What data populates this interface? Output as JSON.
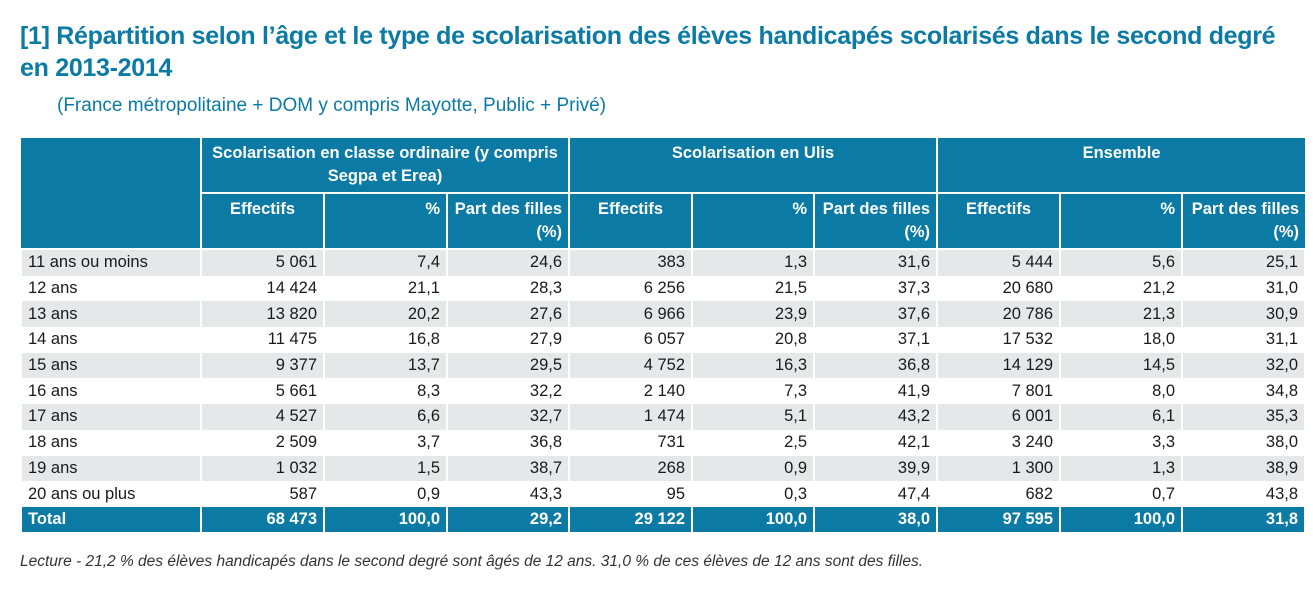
{
  "title": "[1] Répartition selon l’âge et le type de scolarisation des élèves handicapés scolarisés dans le second degré en 2013-2014",
  "subtitle": "(France métropolitaine + DOM y compris Mayotte, Public + Privé)",
  "table": {
    "groups": {
      "ordinaire": "Scolarisation en classe ordinaire (y compris Segpa et Erea)",
      "ulis": "Scolarisation en Ulis",
      "ensemble": "Ensemble"
    },
    "subheaders": {
      "effectifs": "Effectifs",
      "pct": "%",
      "filles": "Part des filles (%)"
    },
    "rows": [
      {
        "label": "11 ans ou moins",
        "values": [
          "5 061",
          "7,4",
          "24,6",
          "383",
          "1,3",
          "31,6",
          "5 444",
          "5,6",
          "25,1"
        ]
      },
      {
        "label": "12 ans",
        "values": [
          "14 424",
          "21,1",
          "28,3",
          "6 256",
          "21,5",
          "37,3",
          "20 680",
          "21,2",
          "31,0"
        ]
      },
      {
        "label": "13 ans",
        "values": [
          "13 820",
          "20,2",
          "27,6",
          "6 966",
          "23,9",
          "37,6",
          "20 786",
          "21,3",
          "30,9"
        ]
      },
      {
        "label": "14 ans",
        "values": [
          "11 475",
          "16,8",
          "27,9",
          "6 057",
          "20,8",
          "37,1",
          "17 532",
          "18,0",
          "31,1"
        ]
      },
      {
        "label": "15 ans",
        "values": [
          "9 377",
          "13,7",
          "29,5",
          "4 752",
          "16,3",
          "36,8",
          "14 129",
          "14,5",
          "32,0"
        ]
      },
      {
        "label": "16 ans",
        "values": [
          "5 661",
          "8,3",
          "32,2",
          "2 140",
          "7,3",
          "41,9",
          "7 801",
          "8,0",
          "34,8"
        ]
      },
      {
        "label": "17 ans",
        "values": [
          "4 527",
          "6,6",
          "32,7",
          "1 474",
          "5,1",
          "43,2",
          "6 001",
          "6,1",
          "35,3"
        ]
      },
      {
        "label": "18 ans",
        "values": [
          "2 509",
          "3,7",
          "36,8",
          "731",
          "2,5",
          "42,1",
          "3 240",
          "3,3",
          "38,0"
        ]
      },
      {
        "label": "19 ans",
        "values": [
          "1 032",
          "1,5",
          "38,7",
          "268",
          "0,9",
          "39,9",
          "1 300",
          "1,3",
          "38,9"
        ]
      },
      {
        "label": "20 ans ou plus",
        "values": [
          "587",
          "0,9",
          "43,3",
          "95",
          "0,3",
          "47,4",
          "682",
          "0,7",
          "43,8"
        ]
      }
    ],
    "total": {
      "label": "Total",
      "values": [
        "68 473",
        "100,0",
        "29,2",
        "29 122",
        "100,0",
        "38,0",
        "97 595",
        "100,0",
        "31,8"
      ]
    }
  },
  "note": "Lecture - 21,2 % des élèves handicapés dans le second degré sont âgés de 12 ans. 31,0 % de ces élèves de 12 ans sont des filles.",
  "colors": {
    "accent": "#0b7aa5",
    "stripe": "#e6e7e8"
  }
}
